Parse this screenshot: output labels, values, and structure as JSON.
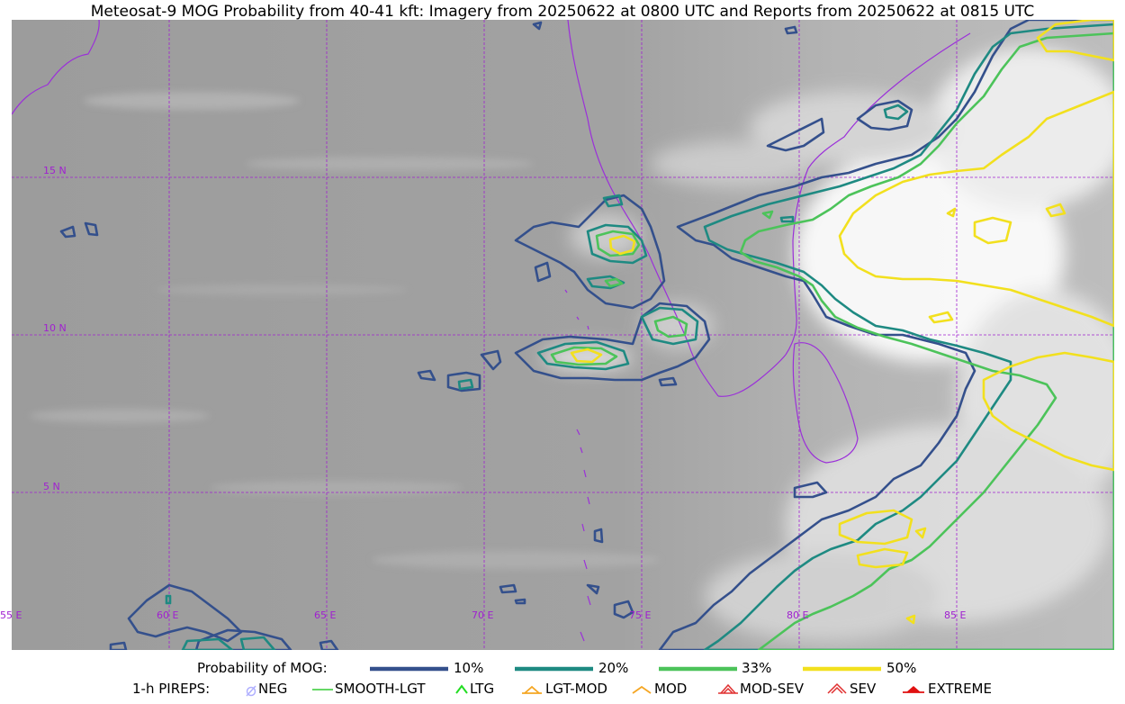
{
  "title": "Meteosat-9 MOG Probability from 40-41 kft: Imagery from 20250622 at 0800 UTC and Reports from 20250622 at 0815 UTC",
  "grid": {
    "lat_labels": [
      "15 N",
      "10 N",
      "5 N"
    ],
    "lon_labels": [
      "55 E",
      "60 E",
      "65 E",
      "70 E",
      "75 E",
      "80 E",
      "85 E"
    ],
    "color": "#a020d0"
  },
  "legend": {
    "probability": {
      "label": "Probability of MOG:",
      "entries": [
        {
          "label": "10%",
          "color": "#34508c"
        },
        {
          "label": "20%",
          "color": "#1e8a82"
        },
        {
          "label": "33%",
          "color": "#4cc35a"
        },
        {
          "label": "50%",
          "color": "#f2e01e"
        }
      ]
    },
    "pireps": {
      "label": "1-h PIREPS:",
      "entries": [
        {
          "label": "NEG",
          "icon": "neg-icon",
          "color": "#b0b0ff"
        },
        {
          "label": "SMOOTH-LGT",
          "icon": "smooth-lgt-icon",
          "color": "#33cc33"
        },
        {
          "label": "LTG",
          "icon": "ltg-icon",
          "color": "#22dd22"
        },
        {
          "label": "LGT-MOD",
          "icon": "lgt-mod-icon",
          "color": "#f5a623"
        },
        {
          "label": "MOD",
          "icon": "mod-icon",
          "color": "#f5a623"
        },
        {
          "label": "MOD-SEV",
          "icon": "mod-sev-icon",
          "color": "#e03030"
        },
        {
          "label": "SEV",
          "icon": "sev-icon",
          "color": "#e03030"
        },
        {
          "label": "EXTREME",
          "icon": "extreme-icon",
          "color": "#e01010"
        }
      ]
    }
  }
}
